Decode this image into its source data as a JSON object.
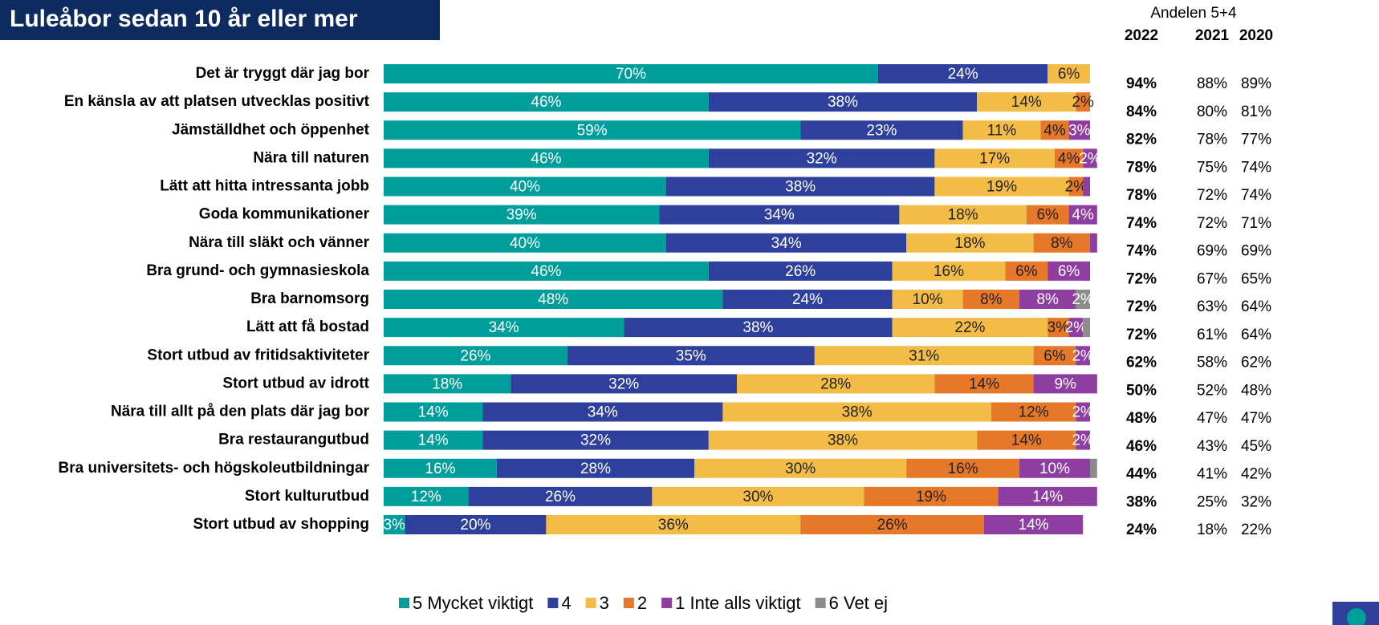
{
  "chart_data": {
    "type": "stacked-barh",
    "title": "Luleåbor sedan 10 år eller mer",
    "categories": [
      "Det är tryggt där jag bor",
      "En känsla av att platsen utvecklas positivt",
      "Jämställdhet och öppenhet",
      "Nära till naturen",
      "Lätt att hitta intressanta jobb",
      "Goda kommunikationer",
      "Nära till släkt och vänner",
      "Bra grund- och gymnasieskola",
      "Bra barnomsorg",
      "Lätt att få bostad",
      "Stort utbud av fritidsaktiviteter",
      "Stort utbud av idrott",
      "Nära till allt på den plats där jag bor",
      "Bra restaurangutbud",
      "Bra universitets- och högskoleutbildningar",
      "Stort kulturutbud",
      "Stort utbud av shopping"
    ],
    "series": [
      {
        "name": "5 Mycket viktigt",
        "color": "#009e9a",
        "values": [
          70,
          46,
          59,
          46,
          40,
          39,
          40,
          46,
          48,
          34,
          26,
          18,
          14,
          14,
          16,
          12,
          3
        ],
        "value_labels": [
          "70%",
          "46%",
          "59%",
          "46%",
          "40%",
          "39%",
          "40%",
          "46%",
          "48%",
          "34%",
          "26%",
          "18%",
          "14%",
          "14%",
          "16%",
          "12%",
          "3%"
        ]
      },
      {
        "name": "4",
        "color": "#2e3f9c",
        "values": [
          24,
          38,
          23,
          32,
          38,
          34,
          34,
          26,
          24,
          38,
          35,
          32,
          34,
          32,
          28,
          26,
          20
        ],
        "value_labels": [
          "24%",
          "38%",
          "23%",
          "32%",
          "38%",
          "34%",
          "34%",
          "26%",
          "24%",
          "38%",
          "35%",
          "32%",
          "34%",
          "32%",
          "28%",
          "26%",
          "20%"
        ]
      },
      {
        "name": "3",
        "color": "#f2bc46",
        "values": [
          6,
          14,
          11,
          17,
          19,
          18,
          18,
          16,
          10,
          22,
          31,
          28,
          38,
          38,
          30,
          30,
          36
        ],
        "value_labels": [
          "6%",
          "14%",
          "11%",
          "17%",
          "19%",
          "18%",
          "18%",
          "16%",
          "10%",
          "22%",
          "31%",
          "28%",
          "38%",
          "38%",
          "30%",
          "30%",
          "36%"
        ]
      },
      {
        "name": "2",
        "color": "#e6782a",
        "values": [
          null,
          2,
          4,
          4,
          2,
          6,
          8,
          6,
          8,
          3,
          6,
          14,
          12,
          14,
          16,
          19,
          26
        ],
        "value_labels": [
          null,
          "2%",
          "4%",
          "4%",
          "2%",
          "6%",
          "8%",
          "6%",
          "8%",
          "3%",
          "6%",
          "14%",
          "12%",
          "14%",
          "16%",
          "19%",
          "26%"
        ]
      },
      {
        "name": "1 Inte alls viktigt",
        "color": "#8e3ea0",
        "values": [
          null,
          null,
          3,
          2,
          1,
          4,
          1,
          6,
          8,
          2,
          2,
          9,
          2,
          2,
          10,
          14,
          14
        ],
        "value_labels": [
          null,
          null,
          "3%",
          "2%",
          null,
          "4%",
          null,
          "6%",
          "8%",
          "2%",
          "2%",
          "9%",
          "2%",
          "2%",
          "10%",
          "14%",
          "14%"
        ]
      },
      {
        "name": "6 Vet ej",
        "color": "#8c8c8c",
        "values": [
          null,
          null,
          null,
          null,
          null,
          null,
          null,
          null,
          2,
          1,
          null,
          null,
          null,
          null,
          1,
          null,
          null
        ],
        "value_labels": [
          null,
          null,
          null,
          null,
          null,
          null,
          null,
          null,
          "2%",
          null,
          null,
          null,
          null,
          null,
          null,
          null,
          null
        ]
      }
    ],
    "table": {
      "title": "Andelen 5+4",
      "columns": [
        "2022",
        "2021",
        "2020"
      ],
      "rows": [
        [
          "94%",
          "88%",
          "89%"
        ],
        [
          "84%",
          "80%",
          "81%"
        ],
        [
          "82%",
          "78%",
          "77%"
        ],
        [
          "78%",
          "75%",
          "74%"
        ],
        [
          "78%",
          "72%",
          "74%"
        ],
        [
          "74%",
          "72%",
          "71%"
        ],
        [
          "74%",
          "69%",
          "69%"
        ],
        [
          "72%",
          "67%",
          "65%"
        ],
        [
          "72%",
          "63%",
          "64%"
        ],
        [
          "72%",
          "61%",
          "64%"
        ],
        [
          "62%",
          "58%",
          "62%"
        ],
        [
          "50%",
          "52%",
          "48%"
        ],
        [
          "48%",
          "47%",
          "47%"
        ],
        [
          "46%",
          "43%",
          "45%"
        ],
        [
          "44%",
          "41%",
          "42%"
        ],
        [
          "38%",
          "25%",
          "32%"
        ],
        [
          "24%",
          "18%",
          "22%"
        ]
      ]
    }
  }
}
